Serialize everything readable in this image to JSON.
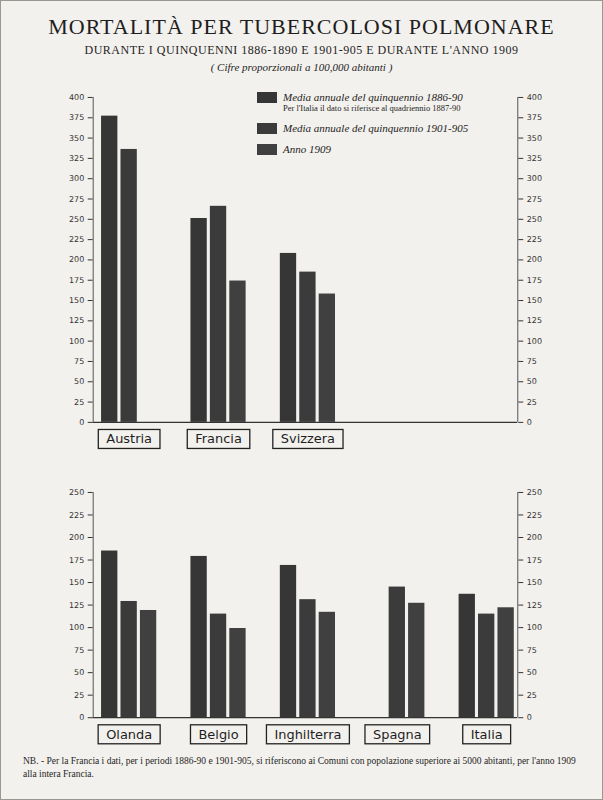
{
  "chart_data": [
    {
      "type": "bar",
      "title": "MORTALITÀ PER TUBERCOLOSI POLMONARE",
      "subtitle": "DURANTE I QUINQUENNI 1886-1890 E 1901-905 E DURANTE L'ANNO 1909",
      "annotations": [
        "( Cifre proporzionali a 100,000 abitanti )"
      ],
      "categories": [
        "Austria",
        "Francia",
        "Svizzera"
      ],
      "series": [
        {
          "name": "Media annuale del quinquennio 1886-90",
          "note": "Per l'Italia il dato si riferisce al quadriennio 1887-90",
          "color": "#363636",
          "values": [
            377,
            251,
            208
          ]
        },
        {
          "name": "Media annuale del quinquennio 1901-905",
          "color": "#3b3b3b",
          "values": [
            336,
            266,
            185
          ]
        },
        {
          "name": "Anno 1909",
          "color": "#404040",
          "values": [
            null,
            174,
            158
          ]
        }
      ],
      "ylim": [
        0,
        400
      ],
      "yticks": [
        0,
        25,
        50,
        75,
        100,
        125,
        150,
        175,
        200,
        225,
        250,
        275,
        300,
        325,
        350,
        375,
        400
      ],
      "legend": "top-right"
    },
    {
      "type": "bar",
      "categories": [
        "Olanda",
        "Belgio",
        "Inghilterra",
        "Spagna",
        "Italia"
      ],
      "series": [
        {
          "name": "Media annuale del quinquennio 1886-90",
          "color": "#363636",
          "values": [
            185,
            179,
            169,
            null,
            137
          ]
        },
        {
          "name": "Media annuale del quinquennio 1901-905",
          "color": "#3b3b3b",
          "values": [
            129,
            115,
            131,
            145,
            115
          ]
        },
        {
          "name": "Anno 1909",
          "color": "#404040",
          "values": [
            119,
            99,
            117,
            127,
            122
          ]
        }
      ],
      "ylim": [
        0,
        250
      ],
      "yticks": [
        0,
        25,
        50,
        75,
        100,
        125,
        150,
        175,
        200,
        225,
        250
      ],
      "annotations": [
        "NB. - Per la Francia i dati, per i periodi 1886-90 e 1901-905, si riferiscono ai Comuni con popolazione superiore ai 5000 abitanti, per l'anno 1909 alla intera Francia."
      ]
    }
  ]
}
